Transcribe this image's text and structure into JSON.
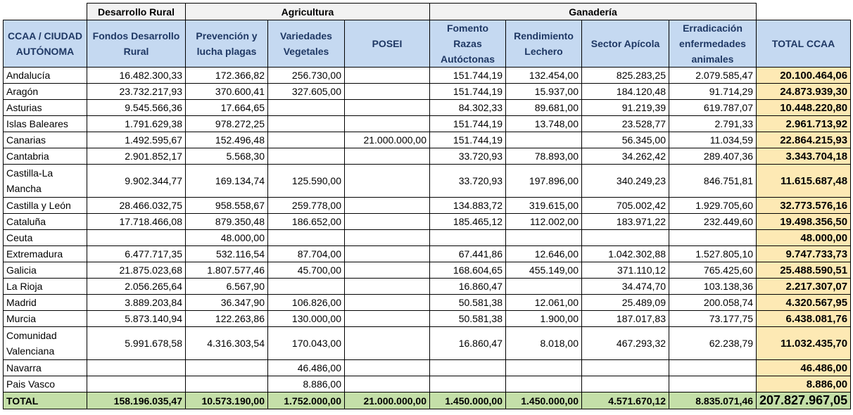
{
  "groups": {
    "desarrollo": "Desarrollo Rural",
    "agricultura": "Agricultura",
    "ganaderia": "Ganadería"
  },
  "headers": [
    "CCAA / CIUDAD AUTÓNOMA",
    "Fondos Desarrollo Rural",
    "Prevención y lucha plagas",
    "Variedades Vegetales",
    "POSEI",
    "Fomento Razas Autóctonas",
    "Rendimiento Lechero",
    "Sector Apícola",
    "Erradicación enfermedades animales",
    "TOTAL CCAA"
  ],
  "rows": [
    {
      "name": "Andalucía",
      "values": [
        "16.482.300,33",
        "172.366,82",
        "256.730,00",
        "",
        "151.744,19",
        "132.454,00",
        "825.283,25",
        "2.079.585,47"
      ],
      "total": "20.100.464,06"
    },
    {
      "name": "Aragón",
      "values": [
        "23.732.217,93",
        "370.600,41",
        "327.605,00",
        "",
        "151.744,19",
        "15.937,00",
        "184.120,48",
        "91.714,29"
      ],
      "total": "24.873.939,30"
    },
    {
      "name": "Asturias",
      "values": [
        "9.545.566,36",
        "17.664,65",
        "",
        "",
        "84.302,33",
        "89.681,00",
        "91.219,39",
        "619.787,07"
      ],
      "total": "10.448.220,80"
    },
    {
      "name": "Islas Baleares",
      "values": [
        "1.791.629,38",
        "978.272,25",
        "",
        "",
        "151.744,19",
        "13.748,00",
        "23.528,77",
        "2.791,33"
      ],
      "total": "2.961.713,92"
    },
    {
      "name": "Canarias",
      "values": [
        "1.492.595,67",
        "152.496,48",
        "",
        "21.000.000,00",
        "151.744,19",
        "",
        "56.345,00",
        "11.034,59"
      ],
      "total": "22.864.215,93"
    },
    {
      "name": "Cantabria",
      "values": [
        "2.901.852,17",
        "5.568,30",
        "",
        "",
        "33.720,93",
        "78.893,00",
        "34.262,42",
        "289.407,36"
      ],
      "total": "3.343.704,18"
    },
    {
      "name": "Castilla-La Mancha",
      "values": [
        "9.902.344,77",
        "169.134,74",
        "125.590,00",
        "",
        "33.720,93",
        "197.896,00",
        "340.249,23",
        "846.751,81"
      ],
      "total": "11.615.687,48"
    },
    {
      "name": "Castilla y León",
      "values": [
        "28.466.032,75",
        "958.558,67",
        "259.778,00",
        "",
        "134.883,72",
        "319.615,00",
        "705.002,42",
        "1.929.705,60"
      ],
      "total": "32.773.576,16"
    },
    {
      "name": "Cataluña",
      "values": [
        "17.718.466,08",
        "879.350,48",
        "186.652,00",
        "",
        "185.465,12",
        "112.002,00",
        "183.971,22",
        "232.449,60"
      ],
      "total": "19.498.356,50"
    },
    {
      "name": "Ceuta",
      "values": [
        "",
        "48.000,00",
        "",
        "",
        "",
        "",
        "",
        ""
      ],
      "total": "48.000,00"
    },
    {
      "name": "Extremadura",
      "values": [
        "6.477.717,35",
        "532.116,54",
        "87.704,00",
        "",
        "67.441,86",
        "12.646,00",
        "1.042.302,88",
        "1.527.805,10"
      ],
      "total": "9.747.733,73"
    },
    {
      "name": "Galicia",
      "values": [
        "21.875.023,68",
        "1.807.577,46",
        "45.700,00",
        "",
        "168.604,65",
        "455.149,00",
        "371.110,12",
        "765.425,60"
      ],
      "total": "25.488.590,51"
    },
    {
      "name": "La Rioja",
      "values": [
        "2.056.265,64",
        "6.567,90",
        "",
        "",
        "16.860,47",
        "",
        "34.474,70",
        "103.138,36"
      ],
      "total": "2.217.307,07"
    },
    {
      "name": "Madrid",
      "values": [
        "3.889.203,84",
        "36.347,90",
        "106.826,00",
        "",
        "50.581,38",
        "12.061,00",
        "25.489,09",
        "200.058,74"
      ],
      "total": "4.320.567,95"
    },
    {
      "name": "Murcia",
      "values": [
        "5.873.140,94",
        "122.263,86",
        "130.000,00",
        "",
        "50.581,38",
        "1.900,00",
        "187.017,83",
        "73.177,75"
      ],
      "total": "6.438.081,76"
    },
    {
      "name": "Comunidad Valenciana",
      "values": [
        "5.991.678,58",
        "4.316.303,54",
        "170.043,00",
        "",
        "16.860,47",
        "8.018,00",
        "467.293,32",
        "62.238,79"
      ],
      "total": "11.032.435,70"
    },
    {
      "name": "Navarra",
      "values": [
        "",
        "",
        "46.486,00",
        "",
        "",
        "",
        "",
        ""
      ],
      "total": "46.486,00"
    },
    {
      "name": "Pais Vasco",
      "values": [
        "",
        "",
        "8.886,00",
        "",
        "",
        "",
        "",
        ""
      ],
      "total": "8.886,00"
    }
  ],
  "total_row": {
    "label": "TOTAL",
    "values": [
      "158.196.035,47",
      "10.573.190,00",
      "1.752.000,00",
      "21.000.000,00",
      "1.450.000,00",
      "1.450.000,00",
      "4.571.670,12",
      "8.835.071,46"
    ],
    "grand_total": "207.827.967,05"
  },
  "colors": {
    "header_bg": "#c5d9f1",
    "header_text": "#1f3864",
    "group_bg": "#f2f2f2",
    "total_col_bg": "#fde9b4",
    "total_row_bg": "#c4dfa8"
  }
}
